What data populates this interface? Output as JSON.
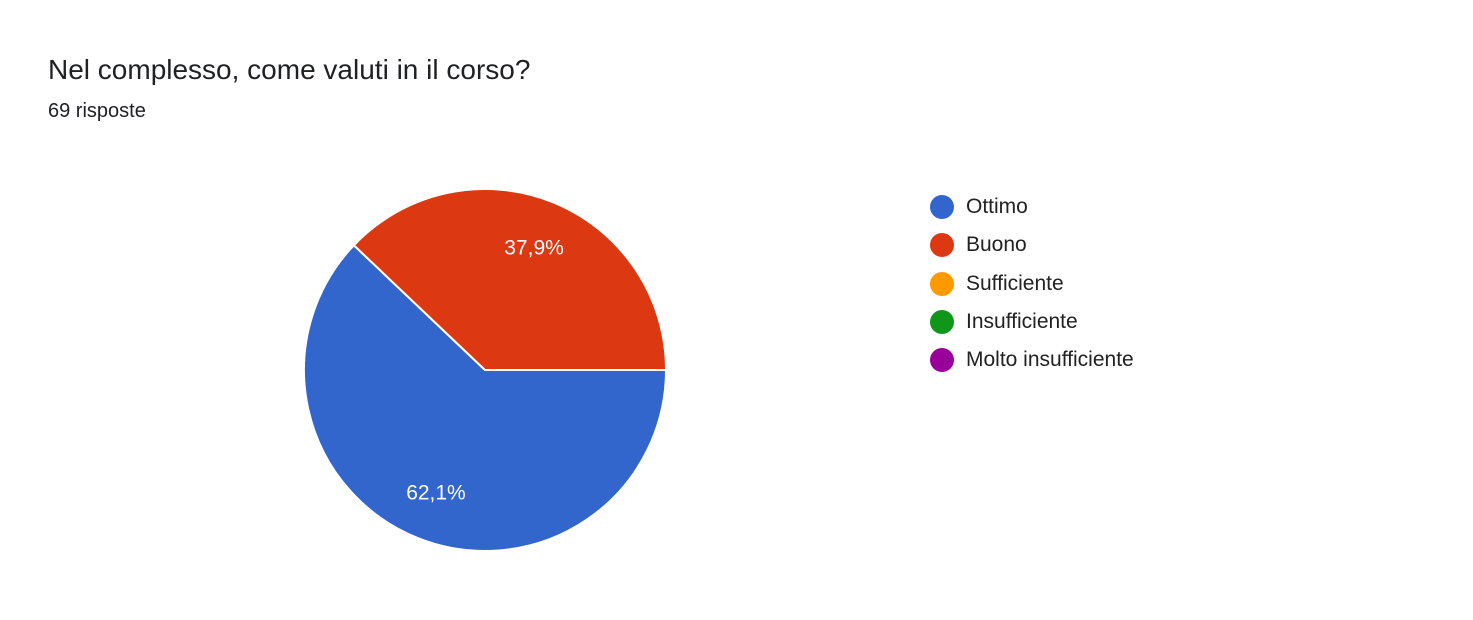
{
  "header": {
    "title": "Nel complesso, come valuti in il corso?",
    "response_count": "69 risposte"
  },
  "chart_data": {
    "type": "pie",
    "categories": [
      "Ottimo",
      "Buono",
      "Sufficiente",
      "Insufficiente",
      "Molto insufficiente"
    ],
    "values": [
      62.1,
      37.9,
      0,
      0,
      0
    ],
    "data_labels": [
      "62,1%",
      "37,9%",
      "",
      "",
      ""
    ],
    "colors": [
      "#3366cc",
      "#dc3912",
      "#ff9900",
      "#109618",
      "#990099"
    ],
    "legend_position": "right"
  }
}
